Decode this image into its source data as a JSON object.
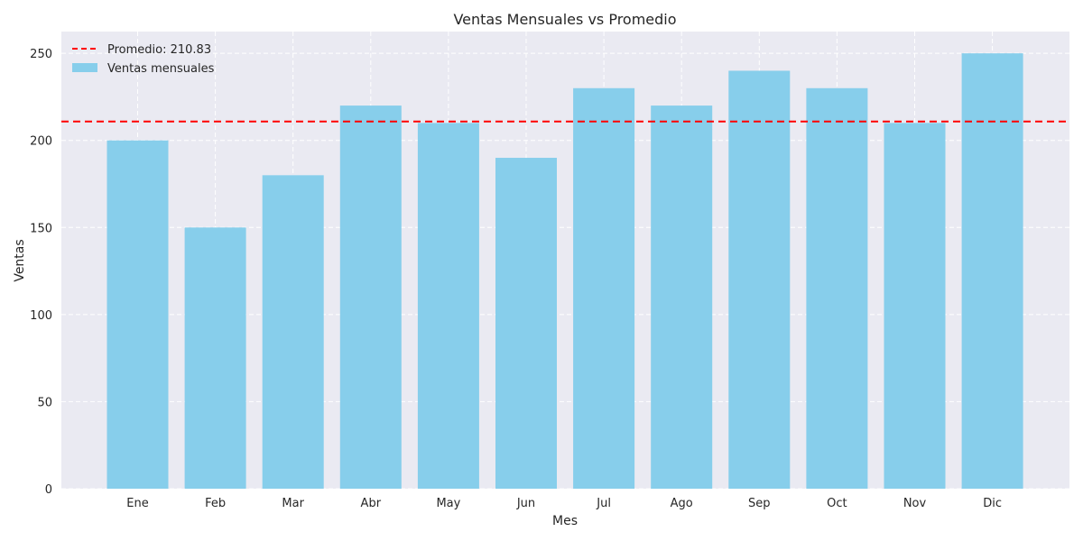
{
  "chart_data": {
    "type": "bar",
    "title": "Ventas Mensuales vs Promedio",
    "xlabel": "Mes",
    "ylabel": "Ventas",
    "categories": [
      "Ene",
      "Feb",
      "Mar",
      "Abr",
      "May",
      "Jun",
      "Jul",
      "Ago",
      "Sep",
      "Oct",
      "Nov",
      "Dic"
    ],
    "series": [
      {
        "name": "Ventas mensuales",
        "values": [
          200,
          150,
          180,
          220,
          210,
          190,
          230,
          220,
          240,
          230,
          210,
          250
        ],
        "color": "#87CEEB"
      }
    ],
    "reference_line": {
      "label": "Promedio: 210.83",
      "value": 210.83,
      "color": "#ff0000",
      "style": "dashed"
    },
    "ylim": [
      0,
      262.5
    ],
    "yticks": [
      0,
      50,
      100,
      150,
      200,
      250
    ],
    "grid": true,
    "legend_position": "top-left",
    "background_color": "#EAEAF2"
  }
}
